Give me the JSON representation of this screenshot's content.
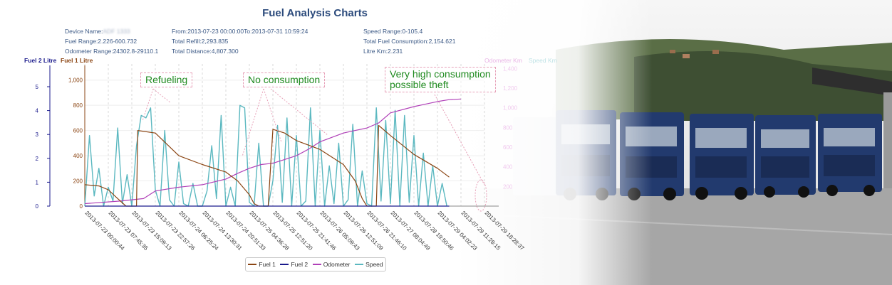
{
  "title": "Fuel Analysis Charts",
  "info": {
    "device_label": "Device Name:",
    "device_name": "ADF 1333",
    "fuel_range": "Fuel Range:2.226-600.732",
    "odometer_range": "Odometer Range:24302.8-29110.1",
    "period": "From:2013-07-23 00:00:00To:2013-07-31 10:59:24",
    "total_refill": "Total Refill:2,293.835",
    "total_distance": "Total Distance:4,807.300",
    "speed_range": "Speed Range:0-105.4",
    "total_consumption": "Total Fuel Consumption:2,154.621",
    "litre_km": "Litre Km:2.231"
  },
  "annotations": {
    "refueling": "Refueling",
    "no_consumption": "No consumption",
    "high_line1": "Very high consumption",
    "high_line2": "possible theft"
  },
  "colors": {
    "fuel1": "#8b4513",
    "fuel2": "#1a1a8c",
    "odometer": "#b040b8",
    "speed": "#5bb8c0",
    "title": "#2c4b7c",
    "annotation": "#1f8a1f"
  },
  "chart_data": {
    "type": "line",
    "axes": {
      "fuel2_label": "Fuel 2 Litre",
      "fuel1_label": "Fuel 1 Litre",
      "odometer_label": "Odometer Km",
      "speed_label": "Speed Km",
      "fuel2_ticks": [
        "0",
        "1",
        "2",
        "3",
        "4",
        "5"
      ],
      "fuel1_ticks": [
        "0",
        "200",
        "400",
        "600",
        "800",
        "1,000"
      ],
      "odometer_ticks": [
        "200",
        "400",
        "600",
        "800",
        "1,000",
        "1,200",
        "1,400"
      ],
      "fuel1_ylim": [
        0,
        1100
      ],
      "odometer_ylim": [
        0,
        1100
      ]
    },
    "categories": [
      "2013-07-23 00:00:44",
      "2013-07-23 07:45:35",
      "2013-07-23 15:09:13",
      "2013-07-23 22:57:26",
      "2013-07-24 06:25:24",
      "2013-07-24 13:30:31",
      "2013-07-24 20:51:33",
      "2013-07-25 04:36:28",
      "2013-07-25 12:51:20",
      "2013-07-25 21:41:46",
      "2013-07-26 05:09:43",
      "2013-07-26 12:51:09",
      "2013-07-26 21:46:10",
      "2013-07-27 08:04:49",
      "2013-07-28 19:50:46",
      "2013-07-29 04:02:23",
      "2013-07-29 11:28:15",
      "2013-07-29 18:28:37"
    ],
    "series": [
      {
        "name": "Fuel 1",
        "axis": "fuel1",
        "x": [
          0,
          0.6,
          1,
          1.4,
          1.75,
          2.2,
          2.25,
          3,
          4,
          5,
          6,
          6.5,
          7,
          7.2,
          7.4,
          7.6,
          7.8,
          8,
          8.5,
          9,
          10,
          11,
          11.5,
          11.8,
          12,
          12.4,
          12.5,
          13,
          14,
          15,
          15.5
        ],
        "values": [
          170,
          160,
          130,
          60,
          0,
          0,
          600,
          580,
          400,
          330,
          270,
          200,
          90,
          20,
          0,
          0,
          0,
          610,
          580,
          520,
          450,
          330,
          200,
          60,
          0,
          0,
          640,
          560,
          410,
          300,
          230
        ]
      },
      {
        "name": "Fuel 2",
        "axis": "fuel2",
        "x": [
          0,
          15.5
        ],
        "values": [
          0,
          0
        ]
      },
      {
        "name": "Odometer",
        "axis": "odometer",
        "x": [
          0,
          1.5,
          2.5,
          3,
          4,
          5,
          6,
          6.5,
          7,
          7.5,
          8,
          8.5,
          9,
          9.5,
          10,
          11,
          11.5,
          12,
          12.5,
          13,
          14,
          14.5,
          15,
          15.5,
          16
        ],
        "values": [
          20,
          40,
          60,
          120,
          150,
          170,
          215,
          260,
          300,
          330,
          340,
          370,
          400,
          450,
          510,
          580,
          600,
          620,
          660,
          740,
          790,
          810,
          830,
          845,
          850
        ]
      },
      {
        "name": "Speed",
        "axis": "fuel1",
        "x": [
          0,
          0.2,
          0.4,
          0.6,
          0.8,
          1,
          1.2,
          1.4,
          1.6,
          1.8,
          2,
          2.2,
          2.4,
          2.6,
          2.8,
          3,
          3.2,
          3.4,
          3.6,
          3.8,
          4,
          4.2,
          4.4,
          4.6,
          4.8,
          5,
          5.2,
          5.4,
          5.6,
          5.8,
          6,
          6.2,
          6.4,
          6.6,
          6.8,
          7,
          7.2,
          7.4,
          7.6,
          7.8,
          8,
          8.2,
          8.4,
          8.6,
          8.8,
          9,
          9.2,
          9.4,
          9.6,
          9.8,
          10,
          10.2,
          10.4,
          10.6,
          10.8,
          11,
          11.2,
          11.4,
          11.6,
          11.8,
          12,
          12.2,
          12.4,
          12.6,
          12.8,
          13,
          13.2,
          13.4,
          13.6,
          13.8,
          14,
          14.2,
          14.4,
          14.6,
          14.8,
          15,
          15.2,
          15.4
        ],
        "values": [
          0,
          560,
          80,
          300,
          0,
          150,
          40,
          620,
          20,
          250,
          0,
          480,
          720,
          700,
          780,
          130,
          0,
          600,
          50,
          0,
          350,
          20,
          0,
          180,
          0,
          0,
          120,
          480,
          60,
          720,
          0,
          150,
          0,
          800,
          780,
          30,
          0,
          500,
          0,
          0,
          200,
          640,
          30,
          700,
          0,
          560,
          0,
          40,
          780,
          0,
          600,
          0,
          320,
          20,
          500,
          0,
          50,
          650,
          0,
          280,
          20,
          0,
          780,
          40,
          680,
          20,
          760,
          0,
          720,
          30,
          560,
          0,
          420,
          0,
          320,
          0,
          180,
          0
        ]
      }
    ],
    "legend": [
      "Fuel 1",
      "Fuel 2",
      "Odometer",
      "Speed"
    ],
    "legend_position": "bottom",
    "grid": true
  }
}
